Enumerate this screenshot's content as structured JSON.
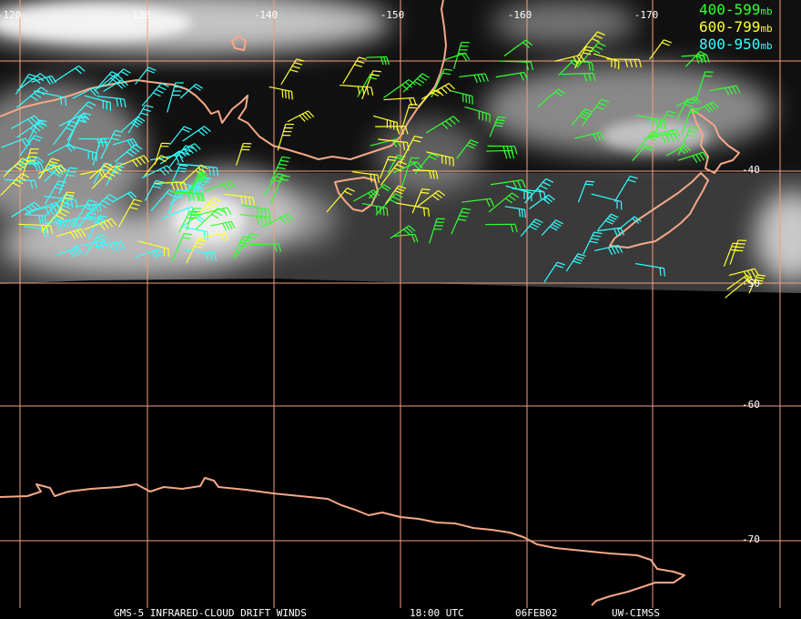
{
  "longitude_labels": [
    "-120",
    "-130",
    "-140",
    "-150",
    "-160",
    "-170"
  ],
  "latitude_labels": [
    "-40",
    "-50",
    "-60",
    "-70"
  ],
  "legend": [
    {
      "range": "400-599",
      "unit": "mb",
      "color": "#33ff33"
    },
    {
      "range": "600-799",
      "unit": "mb",
      "color": "#ffff33"
    },
    {
      "range": "800-950",
      "unit": "mb",
      "color": "#33ffff"
    }
  ],
  "footer": [
    "GMS-5 INFRARED-CLOUD DRIFT WINDS",
    "18:00 UTC",
    "06FEB02",
    "UW-CIMSS"
  ]
}
